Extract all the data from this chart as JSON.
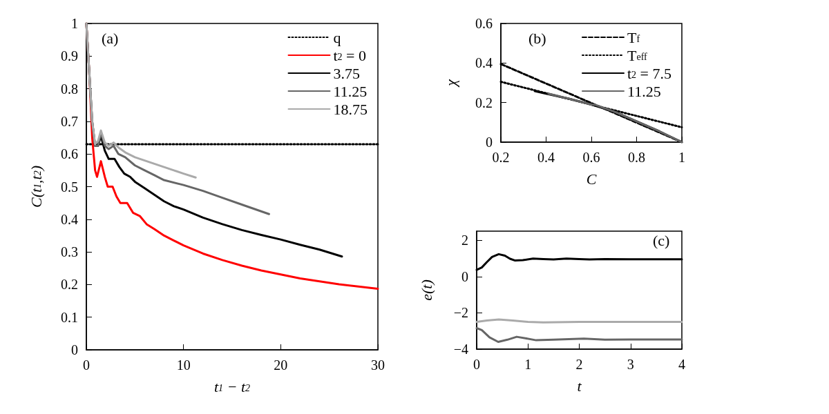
{
  "chart_data": [
    {
      "type": "line",
      "xlabel": "t$_{1}$ − t$_{2}$",
      "ylabel": "C(t$_{1}$,t$_{2}$)",
      "annotations": [
        "(a)"
      ],
      "xlim": [
        0,
        30
      ],
      "xticks": [
        0,
        10,
        20,
        30
      ],
      "ylim": [
        0,
        1
      ],
      "yticks": [
        0,
        0.1,
        0.2,
        0.3,
        0.4,
        0.5,
        0.6,
        0.7,
        0.8,
        0.9,
        1
      ],
      "grid": false,
      "legend": "top right",
      "marker": "none",
      "series": [
        {
          "name": "q",
          "color": "#000000",
          "line_style": "dotted",
          "x": [
            0,
            30
          ],
          "values": [
            0.63,
            0.63
          ]
        },
        {
          "name": "t$_{2}$ = 0",
          "color": "#ff0000",
          "line_style": "solid",
          "x": [
            0,
            0.3,
            0.6,
            0.9,
            1.1,
            1.5,
            1.9,
            2.2,
            2.7,
            3.1,
            3.5,
            4.2,
            4.8,
            5.5,
            6.2,
            7,
            8,
            9,
            10,
            12,
            14,
            16,
            18,
            20,
            22,
            24,
            26,
            28,
            30
          ],
          "values": [
            1,
            0.85,
            0.65,
            0.55,
            0.53,
            0.578,
            0.53,
            0.5,
            0.5,
            0.47,
            0.45,
            0.45,
            0.42,
            0.41,
            0.385,
            0.37,
            0.35,
            0.335,
            0.32,
            0.295,
            0.275,
            0.258,
            0.243,
            0.231,
            0.219,
            0.21,
            0.201,
            0.194,
            0.187
          ]
        },
        {
          "name": "3.75",
          "color": "#000000",
          "line_style": "solid",
          "x": [
            0,
            0.3,
            0.6,
            0.9,
            1.2,
            1.5,
            1.9,
            2.3,
            2.9,
            3.4,
            3.9,
            4.5,
            5,
            6,
            7,
            8,
            9,
            10,
            12,
            14,
            16,
            18,
            20,
            22,
            24,
            26.3
          ],
          "values": [
            1,
            0.85,
            0.7,
            0.625,
            0.625,
            0.655,
            0.61,
            0.585,
            0.585,
            0.56,
            0.54,
            0.53,
            0.515,
            0.495,
            0.475,
            0.455,
            0.44,
            0.43,
            0.405,
            0.385,
            0.367,
            0.352,
            0.338,
            0.322,
            0.307,
            0.286
          ]
        },
        {
          "name": "11.25",
          "color": "#666666",
          "line_style": "solid",
          "x": [
            0,
            0.3,
            0.6,
            0.9,
            1.2,
            1.5,
            1.9,
            2.3,
            2.8,
            3.3,
            4,
            5,
            6,
            7,
            8,
            10,
            12,
            14,
            16,
            18.8
          ],
          "values": [
            1,
            0.85,
            0.7,
            0.625,
            0.625,
            0.665,
            0.625,
            0.615,
            0.625,
            0.6,
            0.59,
            0.565,
            0.55,
            0.535,
            0.52,
            0.505,
            0.487,
            0.466,
            0.445,
            0.416
          ]
        },
        {
          "name": "18.75",
          "color": "#aaaaaa",
          "line_style": "solid",
          "x": [
            0,
            0.3,
            0.6,
            0.9,
            1.2,
            1.5,
            1.9,
            2.3,
            2.8,
            3.3,
            4,
            5,
            6,
            7,
            8,
            9,
            10,
            11.25
          ],
          "values": [
            1,
            0.85,
            0.7,
            0.63,
            0.64,
            0.672,
            0.635,
            0.625,
            0.635,
            0.62,
            0.605,
            0.59,
            0.58,
            0.57,
            0.56,
            0.55,
            0.54,
            0.528
          ]
        }
      ]
    },
    {
      "type": "line",
      "xlabel": "C",
      "ylabel": "χ",
      "annotations": [
        "(b)"
      ],
      "xlim": [
        0.2,
        1
      ],
      "xticks": [
        0.2,
        0.4,
        0.6,
        0.8,
        1
      ],
      "ylim": [
        0,
        0.6
      ],
      "yticks": [
        0,
        0.2,
        0.4,
        0.6
      ],
      "grid": false,
      "legend": "top right",
      "marker": "none",
      "series": [
        {
          "name": "T$_{f}$",
          "color": "#000000",
          "line_style": "dashed",
          "x": [
            0.2,
            1
          ],
          "values": [
            0.395,
            0
          ]
        },
        {
          "name": "T$_{eff}$",
          "color": "#000000",
          "line_style": "dotted",
          "x": [
            0.2,
            1
          ],
          "values": [
            0.305,
            0.075
          ]
        },
        {
          "name": "t$_{2}$ = 7.5",
          "color": "#000000",
          "line_style": "solid",
          "x": [
            0.35,
            0.4,
            0.5,
            0.6,
            0.7,
            0.8,
            0.9,
            1
          ],
          "values": [
            0.258,
            0.245,
            0.22,
            0.19,
            0.155,
            0.105,
            0.055,
            0
          ]
        },
        {
          "name": "11.25",
          "color": "#666666",
          "line_style": "solid",
          "x": [
            0.41,
            0.5,
            0.6,
            0.62,
            0.65,
            0.7,
            0.8,
            0.9,
            1
          ],
          "values": [
            0.245,
            0.22,
            0.19,
            0.188,
            0.175,
            0.155,
            0.105,
            0.055,
            0
          ]
        }
      ]
    },
    {
      "type": "line",
      "xlabel": "t",
      "ylabel": "e(t)",
      "annotations": [
        "(c)"
      ],
      "xlim": [
        0,
        4
      ],
      "xticks": [
        0,
        1,
        2,
        3,
        4
      ],
      "ylim": [
        -4,
        2.5
      ],
      "yticks": [
        {
          "value": -4,
          "label": "−4"
        },
        {
          "value": -2,
          "label": "−2"
        },
        0,
        2
      ],
      "grid": false,
      "marker": "none",
      "series": [
        {
          "color": "#000000",
          "line_style": "solid",
          "x": [
            0,
            0.1,
            0.2,
            0.3,
            0.43,
            0.55,
            0.65,
            0.75,
            0.9,
            1.1,
            1.3,
            1.5,
            1.75,
            2,
            2.2,
            2.5,
            3,
            3.5,
            4
          ],
          "values": [
            0.37,
            0.5,
            0.8,
            1.08,
            1.23,
            1.15,
            0.98,
            0.88,
            0.9,
            0.99,
            0.96,
            0.94,
            0.99,
            0.96,
            0.94,
            0.96,
            0.95,
            0.95,
            0.95
          ]
        },
        {
          "color": "#aaaaaa",
          "line_style": "solid",
          "x": [
            0,
            0.2,
            0.43,
            0.7,
            1,
            1.3,
            2,
            3,
            4
          ],
          "values": [
            -2.5,
            -2.42,
            -2.37,
            -2.42,
            -2.5,
            -2.53,
            -2.5,
            -2.5,
            -2.5
          ]
        },
        {
          "color": "#666666",
          "line_style": "solid",
          "x": [
            0,
            0.1,
            0.25,
            0.42,
            0.6,
            0.78,
            0.95,
            1.16,
            1.5,
            2.09,
            2.5,
            3,
            4
          ],
          "values": [
            -2.84,
            -2.95,
            -3.35,
            -3.6,
            -3.48,
            -3.32,
            -3.4,
            -3.51,
            -3.48,
            -3.42,
            -3.48,
            -3.47,
            -3.47
          ]
        }
      ]
    }
  ]
}
